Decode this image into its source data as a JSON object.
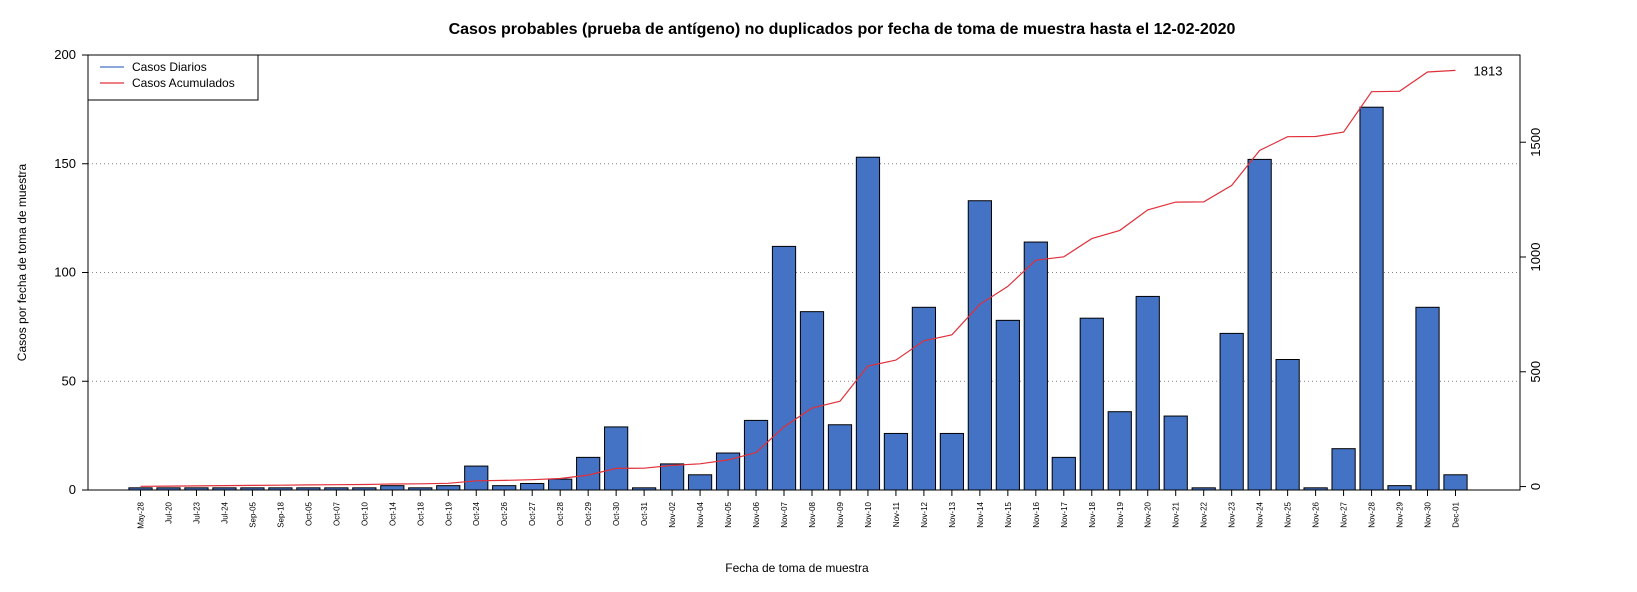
{
  "chart_data": {
    "type": "bar",
    "title": "Casos probables (prueba de antígeno) no duplicados por fecha de toma de muestra hasta el 12-02-2020",
    "xlabel": "Fecha de toma de muestra",
    "ylabel": "Casos por fecha de toma de muestra",
    "ylim": [
      0,
      200
    ],
    "y_ticks": [
      0,
      50,
      100,
      150,
      200
    ],
    "y2lim": [
      -15,
      1880
    ],
    "y2_ticks": [
      0,
      500,
      1000,
      1500
    ],
    "grid": "horizontal dotted",
    "legend_position": "top-left",
    "categories": [
      "May-28",
      "Jul-20",
      "Jul-23",
      "Jul-24",
      "Sep-05",
      "Sep-18",
      "Oct-05",
      "Oct-07",
      "Oct-10",
      "Oct-14",
      "Oct-18",
      "Oct-19",
      "Oct-24",
      "Oct-26",
      "Oct-27",
      "Oct-28",
      "Oct-29",
      "Oct-30",
      "Oct-31",
      "Nov-02",
      "Nov-04",
      "Nov-05",
      "Nov-06",
      "Nov-07",
      "Nov-08",
      "Nov-09",
      "Nov-10",
      "Nov-11",
      "Nov-12",
      "Nov-13",
      "Nov-14",
      "Nov-15",
      "Nov-16",
      "Nov-17",
      "Nov-18",
      "Nov-19",
      "Nov-20",
      "Nov-21",
      "Nov-22",
      "Nov-23",
      "Nov-24",
      "Nov-25",
      "Nov-26",
      "Nov-27",
      "Nov-28",
      "Nov-29",
      "Nov-30",
      "Dec-01"
    ],
    "series": [
      {
        "name": "Casos Diarios",
        "type": "bar",
        "axis": "left",
        "color": "#4472c4",
        "values": [
          1,
          1,
          1,
          1,
          1,
          1,
          1,
          1,
          1,
          2,
          1,
          2,
          11,
          2,
          3,
          5,
          15,
          29,
          1,
          12,
          7,
          17,
          32,
          112,
          82,
          30,
          153,
          26,
          84,
          26,
          133,
          78,
          114,
          15,
          79,
          36,
          89,
          34,
          1,
          72,
          152,
          60,
          1,
          19,
          176,
          2,
          84,
          7
        ]
      },
      {
        "name": "Casos Acumulados",
        "type": "line",
        "axis": "right",
        "color": "#e0303a",
        "values": [
          1,
          2,
          3,
          4,
          5,
          6,
          7,
          8,
          9,
          11,
          12,
          14,
          25,
          27,
          30,
          35,
          50,
          79,
          80,
          92,
          99,
          116,
          148,
          260,
          342,
          372,
          525,
          551,
          635,
          661,
          794,
          872,
          986,
          1001,
          1080,
          1116,
          1205,
          1239,
          1240,
          1312,
          1464,
          1524,
          1525,
          1544,
          1720,
          1722,
          1806,
          1813
        ]
      }
    ],
    "end_label": "1813"
  }
}
